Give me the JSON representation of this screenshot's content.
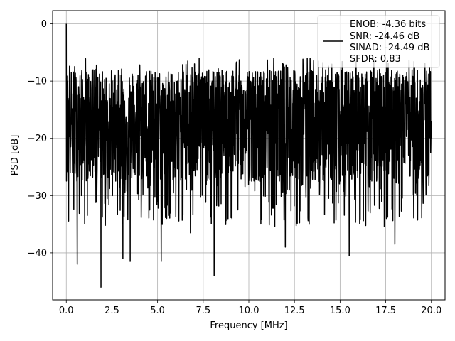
{
  "chart_data": {
    "type": "line",
    "title": "",
    "xlabel": "Frequency [MHz]",
    "ylabel": "PSD [dB]",
    "xlim": [
      -0.75,
      20.75
    ],
    "ylim": [
      -48.2,
      2.3
    ],
    "xticks": [
      0.0,
      2.5,
      5.0,
      7.5,
      10.0,
      12.5,
      15.0,
      17.5,
      20.0
    ],
    "xtick_labels": [
      "0.0",
      "2.5",
      "5.0",
      "7.5",
      "10.0",
      "12.5",
      "15.0",
      "17.5",
      "20.0"
    ],
    "yticks": [
      0,
      -10,
      -20,
      -30,
      -40
    ],
    "ytick_labels": [
      "0",
      "−10",
      "−20",
      "−30",
      "−40"
    ],
    "grid": true,
    "legend_position": "top-right",
    "series": [
      {
        "color": "#000000",
        "num_points": 2048,
        "base_level_db": -17.5,
        "notable_points": [
          {
            "x": 0.0,
            "y": 0.0
          },
          {
            "x": 0.05,
            "y": -25.0
          },
          {
            "x": 0.6,
            "y": -42.0
          },
          {
            "x": 1.9,
            "y": -46.0
          },
          {
            "x": 3.1,
            "y": -41.0
          },
          {
            "x": 3.5,
            "y": -41.5
          },
          {
            "x": 5.2,
            "y": -41.5
          },
          {
            "x": 6.8,
            "y": -36.5
          },
          {
            "x": 8.1,
            "y": -44.0
          },
          {
            "x": 12.0,
            "y": -39.0
          },
          {
            "x": 15.5,
            "y": -40.5
          },
          {
            "x": 18.0,
            "y": -38.5
          },
          {
            "x": 20.0,
            "y": -20.0
          }
        ]
      }
    ],
    "legend": {
      "lines": [
        "ENOB: -4.36 bits",
        "SNR: -24.46 dB",
        "SINAD: -24.49 dB",
        "SFDR: 0.83"
      ]
    }
  }
}
